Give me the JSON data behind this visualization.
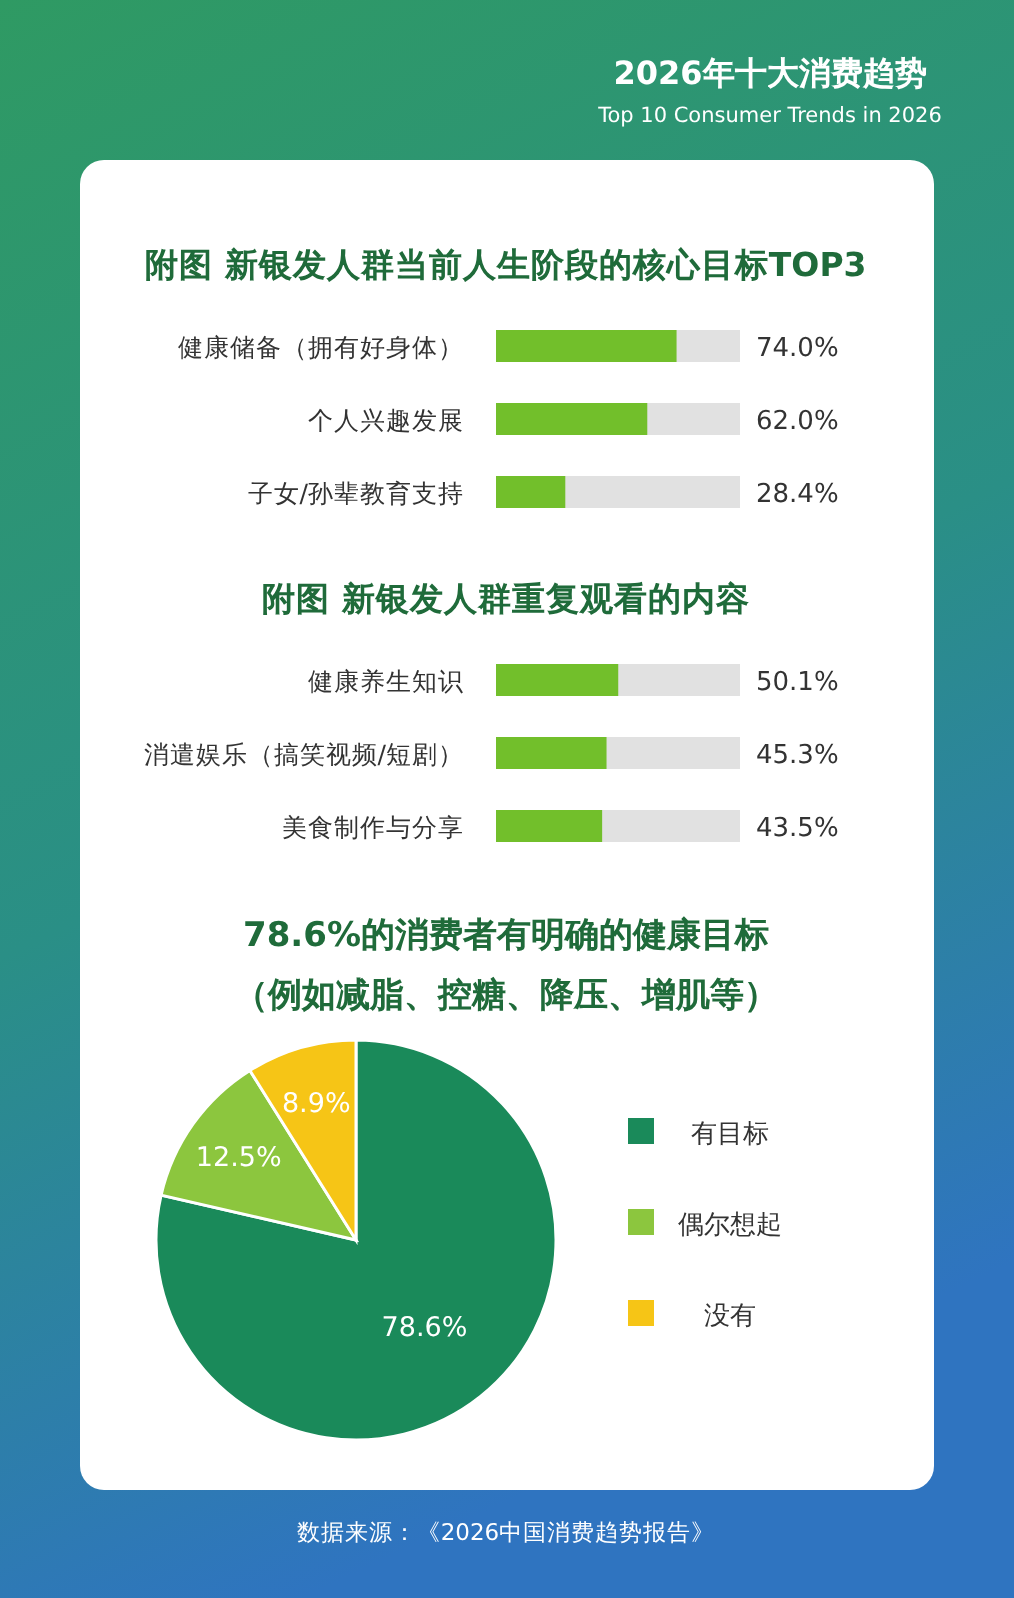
{
  "chart_data": [
    {
      "type": "bar",
      "orientation": "horizontal",
      "title": "附图 新银发人群当前人生阶段的核心目标TOP3",
      "categories": [
        "健康储备（拥有好身体）",
        "个人兴趣发展",
        "子女/孙辈教育支持"
      ],
      "values": [
        74.0,
        62.0,
        28.4
      ],
      "value_labels": [
        "74.0%",
        "62.0%",
        "28.4%"
      ],
      "color": "#72bf2b",
      "xlim": [
        0,
        100
      ],
      "tick_labels": "y",
      "annotations": [
        "2026年十大消费趋势",
        "Top 10 Consumer Trends in 2026"
      ]
    },
    {
      "type": "bar",
      "orientation": "horizontal",
      "title": "附图 新银发人群重复观看的内容",
      "categories": [
        "健康养生知识",
        "消遣娱乐（搞笑视频/短剧）",
        "美食制作与分享"
      ],
      "values": [
        50.1,
        45.3,
        43.5
      ],
      "value_labels": [
        "50.1%",
        "45.3%",
        "43.5%"
      ],
      "color": "#72bf2b",
      "xlim": [
        0,
        100
      ],
      "tick_labels": "y"
    },
    {
      "type": "pie",
      "title": "78.6%的消费者有明确的健康目标",
      "subtitle": "（例如减脂、控糖、降压、增肌等）",
      "categories": [
        "有目标",
        "偶尔想起",
        "没有"
      ],
      "values": [
        78.6,
        12.5,
        8.9
      ],
      "value_labels": [
        "78.6%",
        "12.5%",
        "8.9%"
      ],
      "colors": [
        "#1a8a5a",
        "#8cc63e",
        "#f6c516"
      ],
      "legend": "right",
      "annotations": [
        "数据来源：《2026中国消费趋势报告》"
      ]
    }
  ]
}
